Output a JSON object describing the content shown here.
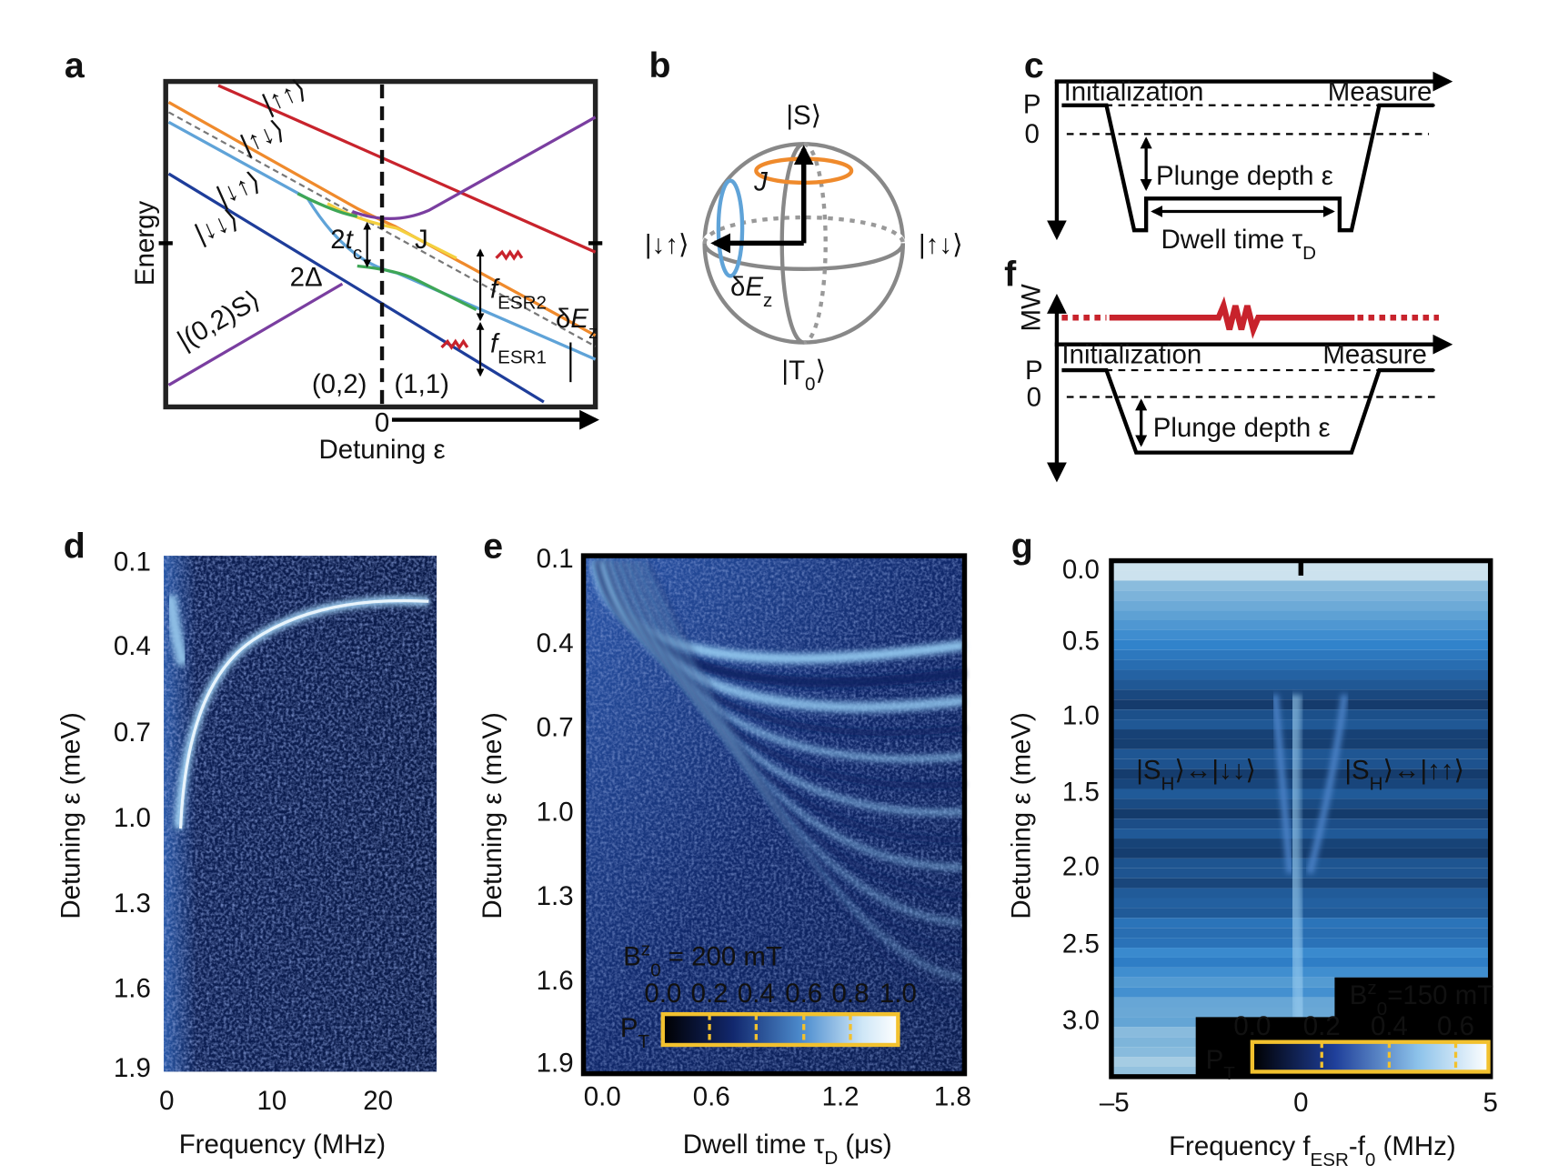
{
  "panels": {
    "a": {
      "label": "a",
      "y_axis": "Energy",
      "x_axis": "Detuning ε",
      "x_zero": "0",
      "regions": [
        "(0,2)",
        "(1,1)"
      ],
      "states": [
        "|↑↑⟩",
        "|↑↓⟩",
        "|↓↑⟩",
        "|↓↓⟩",
        "|(0,2)S⟩"
      ],
      "tc": {
        "pre": "2",
        "main": "t",
        "sub": "c"
      },
      "J": "J",
      "delta": "2Δ",
      "fesr2": {
        "main": "f",
        "sub": "ESR2"
      },
      "fesr1": {
        "main": "f",
        "sub": "ESR1"
      },
      "dEz": {
        "pre": "δ",
        "main": "E",
        "sub": "z"
      }
    },
    "b": {
      "label": "b",
      "top": "|S⟩",
      "left": "|↓↑⟩",
      "right": "|↑↓⟩",
      "bottom": {
        "main": "|T",
        "sub": "0",
        "post": "⟩"
      },
      "J": "J",
      "dEz": {
        "pre": "δ",
        "main": "E",
        "sub": "z"
      }
    },
    "c": {
      "label": "c",
      "P": "P",
      "zero": "0",
      "init": "Initialization",
      "measure": "Measure",
      "plunge": "Plunge depth ε",
      "dwell": {
        "main": "Dwell time τ",
        "sub": "D"
      }
    },
    "f": {
      "label": "f",
      "mw": "MW",
      "P": "P",
      "zero": "0",
      "init": "Initialization",
      "measure": "Measure",
      "plunge": "Plunge depth ε"
    },
    "d": {
      "label": "d",
      "yticks": [
        "0.1",
        "0.4",
        "0.7",
        "1.0",
        "1.3",
        "1.6",
        "1.9"
      ],
      "xticks": [
        "0",
        "10",
        "20"
      ],
      "x_label": "Frequency (MHz)",
      "y_label": "Detuning ε (meV)"
    },
    "e": {
      "label": "e",
      "yticks": [
        "0.1",
        "0.4",
        "0.7",
        "1.0",
        "1.3",
        "1.6",
        "1.9"
      ],
      "xticks": [
        "0.0",
        "0.6",
        "1.2",
        "1.8"
      ],
      "x_label": {
        "main": "Dwell time τ",
        "sub": "D",
        "post": " (μs)"
      },
      "y_label": "Detuning ε (meV)",
      "field": {
        "main": "B",
        "sup": "z",
        "sub": "0",
        "post": " = 200 mT"
      },
      "cbar_ticks": [
        "0.0",
        "0.2",
        "0.4",
        "0.6",
        "0.8",
        "1.0"
      ],
      "cbar_label": {
        "main": "P",
        "sub": "T"
      }
    },
    "g": {
      "label": "g",
      "yticks": [
        "0.0",
        "0.5",
        "1.0",
        "1.5",
        "2.0",
        "2.5",
        "3.0"
      ],
      "xticks": [
        "–5",
        "0",
        "5"
      ],
      "x_label": {
        "main": "Frequency f",
        "sub": "ESR",
        "mid": "-f",
        "sub2": "0",
        "post": " (MHz)"
      },
      "y_label": "Detuning ε (meV)",
      "left_transition": {
        "main": "|S",
        "sub": "H",
        "post": "⟩↔|↓↓⟩"
      },
      "right_transition": {
        "main": "|S",
        "sub": "H",
        "post": "⟩↔|↑↑⟩"
      },
      "field": {
        "main": "B",
        "sup": "z",
        "sub": "0",
        "post": "=150 mT"
      },
      "cbar_ticks": [
        "0.0",
        "0.2",
        "0.4",
        "0.6"
      ],
      "cbar_label": {
        "main": "P",
        "sub": "T"
      }
    }
  }
}
